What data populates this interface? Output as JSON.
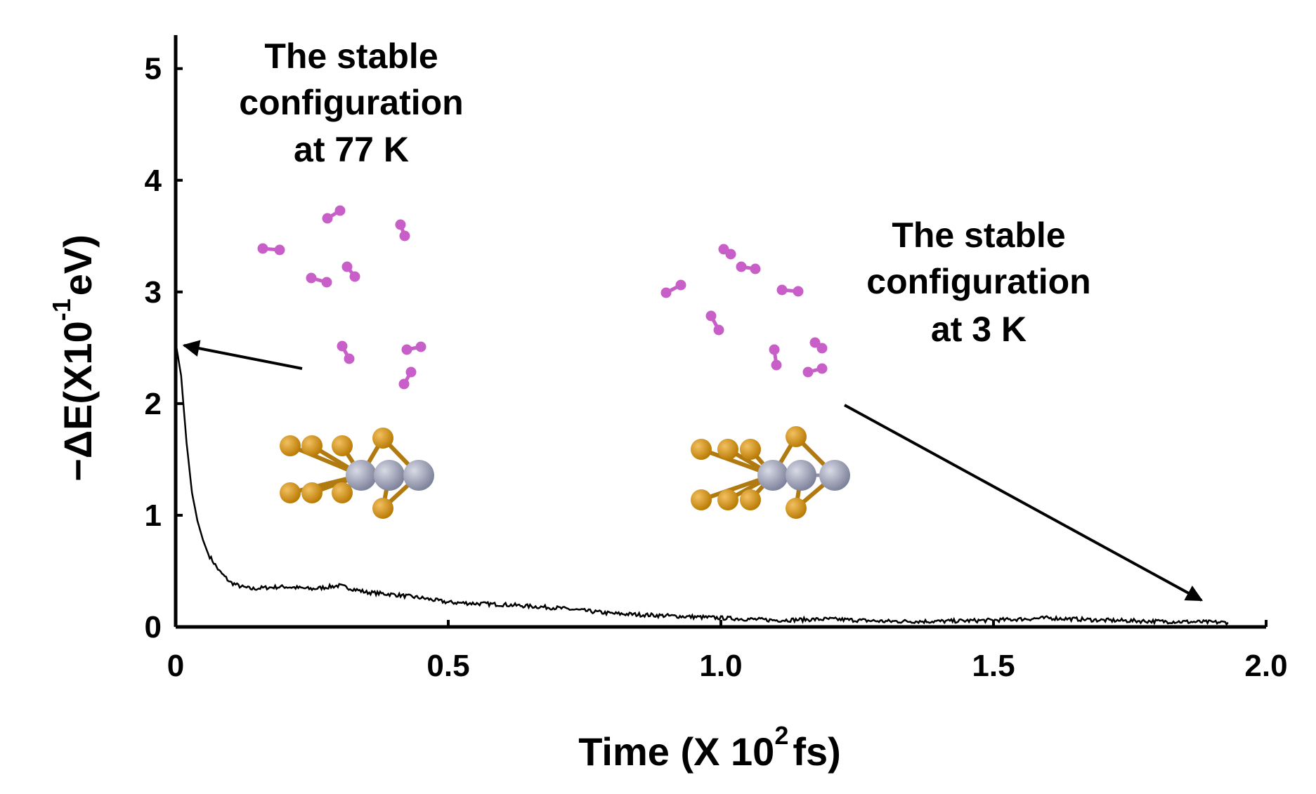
{
  "chart_data": {
    "type": "line",
    "title": "",
    "xlabel": "Time (X 10",
    "xlabel_sup": "2",
    "xlabel_unit": "fs)",
    "ylabel": "−ΔE(X10",
    "ylabel_sup": "-1",
    "ylabel_unit": "eV)",
    "xlim": [
      0,
      2.0
    ],
    "ylim": [
      0,
      5.3
    ],
    "x_ticks": [
      "0",
      "0.5",
      "1.0",
      "1.5",
      "2.0"
    ],
    "y_ticks": [
      "0",
      "1",
      "2",
      "3",
      "4",
      "5"
    ],
    "grid": false,
    "series": [
      {
        "x": [
          0.0,
          0.01,
          0.02,
          0.03,
          0.04,
          0.05,
          0.06,
          0.08,
          0.1,
          0.12,
          0.14,
          0.16,
          0.2,
          0.25,
          0.3,
          0.35,
          0.4,
          0.45,
          0.5,
          0.6,
          0.7,
          0.8,
          0.9,
          1.0,
          1.1,
          1.2,
          1.3,
          1.4,
          1.5,
          1.6,
          1.7,
          1.8,
          1.93
        ],
        "y": [
          2.55,
          2.25,
          1.65,
          1.2,
          0.95,
          0.78,
          0.65,
          0.5,
          0.4,
          0.36,
          0.34,
          0.35,
          0.36,
          0.34,
          0.37,
          0.31,
          0.29,
          0.26,
          0.22,
          0.2,
          0.17,
          0.12,
          0.1,
          0.08,
          0.06,
          0.07,
          0.05,
          0.05,
          0.06,
          0.08,
          0.06,
          0.05,
          0.04
        ]
      }
    ],
    "annotations": [
      {
        "lines": [
          "The stable",
          "configuration",
          "at 77 K"
        ]
      },
      {
        "lines": [
          "The stable",
          "configuration",
          "at 3 K"
        ]
      }
    ]
  },
  "colors": {
    "line": "#000000",
    "h2_molecule": "#c85fc8",
    "gold_atom": "#cc8a10",
    "metal_atom": "#9a9eb4"
  }
}
